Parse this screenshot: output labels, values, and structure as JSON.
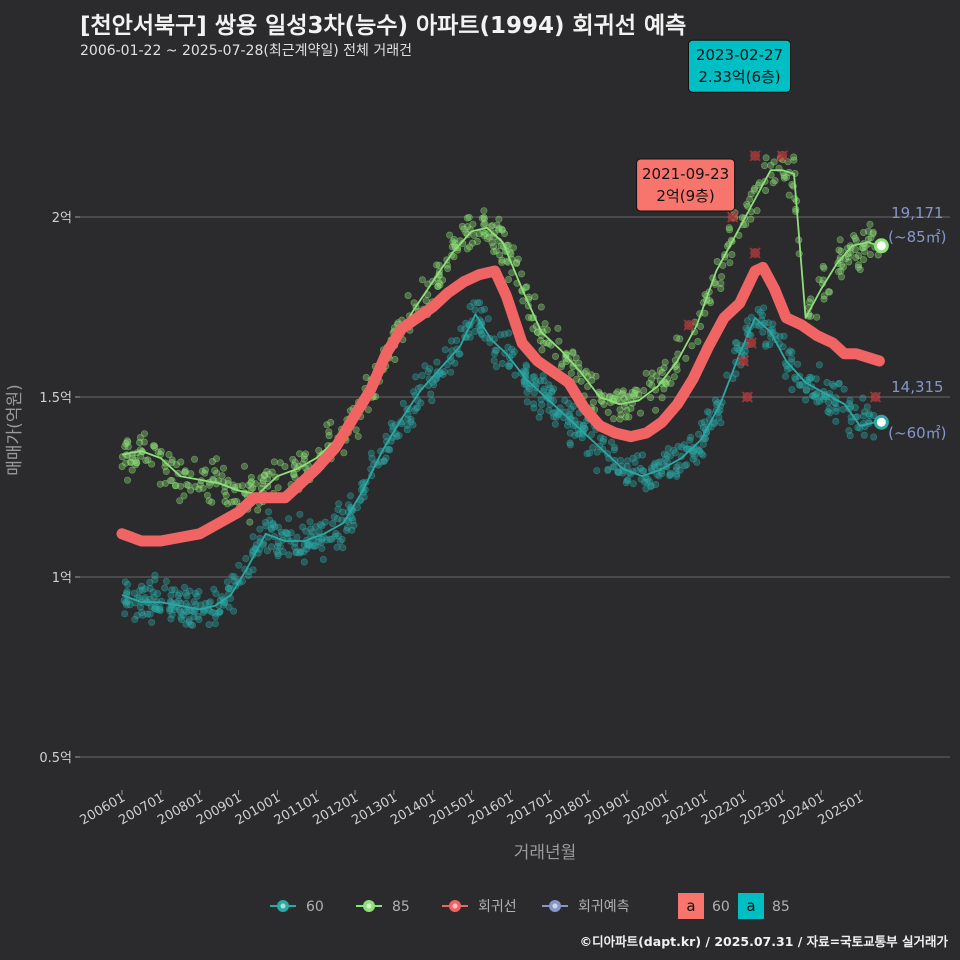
{
  "title": "[천안서북구] 쌍용 일성3차(능수) 아파트(1994) 회귀선 예측",
  "subtitle": "2006-01-22 ~ 2025-07-28(최근계약일) 전체 거래건",
  "caption": "©디아파트(dapt.kr) / 2025.07.31 / 자료=국토교통부 실거래가",
  "colors": {
    "background": "#2b2b2d",
    "grid": "#6a6a6a",
    "s60": "#2ba9a5",
    "s85": "#8fe07a",
    "reg": "#f06464",
    "pred": "#8696c8",
    "label60_bg": "#f8756d",
    "label85_bg": "#00bfc4"
  },
  "chart_data": {
    "type": "scatter",
    "xlabel": "거래년월",
    "ylabel": "매매가(억원)",
    "x_ticks": [
      "200601",
      "200701",
      "200801",
      "200901",
      "201001",
      "201101",
      "201201",
      "201301",
      "201401",
      "201501",
      "201601",
      "201701",
      "201801",
      "201901",
      "202001",
      "202101",
      "202201",
      "202301",
      "202401",
      "202501"
    ],
    "y_ticks": [
      {
        "value": 0.5,
        "label": "0.5억"
      },
      {
        "value": 1.0,
        "label": "1억"
      },
      {
        "value": 1.5,
        "label": "1.5억"
      },
      {
        "value": 2.0,
        "label": "2억"
      }
    ],
    "ylim": [
      0.4,
      2.45
    ],
    "xlim": [
      2005.6,
      2026.0
    ],
    "series": [
      {
        "name": "60",
        "key": "s60",
        "line": [
          [
            2006.0,
            0.95
          ],
          [
            2006.5,
            0.93
          ],
          [
            2007.0,
            0.93
          ],
          [
            2007.5,
            0.92
          ],
          [
            2008.0,
            0.91
          ],
          [
            2008.4,
            0.92
          ],
          [
            2008.8,
            0.95
          ],
          [
            2009.2,
            1.02
          ],
          [
            2009.7,
            1.12
          ],
          [
            2010.2,
            1.1
          ],
          [
            2010.7,
            1.1
          ],
          [
            2011.2,
            1.12
          ],
          [
            2011.7,
            1.15
          ],
          [
            2012.2,
            1.24
          ],
          [
            2012.7,
            1.35
          ],
          [
            2013.2,
            1.44
          ],
          [
            2013.7,
            1.52
          ],
          [
            2014.2,
            1.58
          ],
          [
            2014.7,
            1.64
          ],
          [
            2015.1,
            1.73
          ],
          [
            2015.5,
            1.66
          ],
          [
            2015.9,
            1.62
          ],
          [
            2016.4,
            1.55
          ],
          [
            2016.9,
            1.5
          ],
          [
            2017.4,
            1.45
          ],
          [
            2017.9,
            1.4
          ],
          [
            2018.4,
            1.35
          ],
          [
            2018.9,
            1.3
          ],
          [
            2019.4,
            1.28
          ],
          [
            2019.9,
            1.3
          ],
          [
            2020.4,
            1.33
          ],
          [
            2020.9,
            1.38
          ],
          [
            2021.4,
            1.48
          ],
          [
            2021.9,
            1.62
          ],
          [
            2022.3,
            1.72
          ],
          [
            2022.7,
            1.68
          ],
          [
            2023.1,
            1.6
          ],
          [
            2023.6,
            1.54
          ],
          [
            2024.1,
            1.51
          ],
          [
            2024.6,
            1.48
          ],
          [
            2025.0,
            1.42
          ],
          [
            2025.4,
            1.43
          ]
        ]
      },
      {
        "name": "85",
        "key": "s85",
        "line": [
          [
            2006.0,
            1.34
          ],
          [
            2006.5,
            1.35
          ],
          [
            2007.0,
            1.33
          ],
          [
            2007.5,
            1.28
          ],
          [
            2008.0,
            1.27
          ],
          [
            2008.5,
            1.26
          ],
          [
            2009.0,
            1.24
          ],
          [
            2009.5,
            1.23
          ],
          [
            2010.0,
            1.28
          ],
          [
            2010.5,
            1.3
          ],
          [
            2011.0,
            1.33
          ],
          [
            2011.5,
            1.38
          ],
          [
            2012.0,
            1.45
          ],
          [
            2012.5,
            1.55
          ],
          [
            2013.0,
            1.65
          ],
          [
            2013.5,
            1.74
          ],
          [
            2014.0,
            1.82
          ],
          [
            2014.5,
            1.9
          ],
          [
            2015.0,
            1.96
          ],
          [
            2015.4,
            1.97
          ],
          [
            2015.8,
            1.93
          ],
          [
            2016.3,
            1.8
          ],
          [
            2016.8,
            1.68
          ],
          [
            2017.3,
            1.63
          ],
          [
            2017.8,
            1.57
          ],
          [
            2018.3,
            1.5
          ],
          [
            2018.8,
            1.48
          ],
          [
            2019.3,
            1.49
          ],
          [
            2019.8,
            1.53
          ],
          [
            2020.3,
            1.6
          ],
          [
            2020.8,
            1.7
          ],
          [
            2021.3,
            1.85
          ],
          [
            2021.8,
            1.95
          ],
          [
            2022.3,
            2.05
          ],
          [
            2022.7,
            2.13
          ],
          [
            2023.0,
            2.13
          ],
          [
            2023.3,
            2.12
          ],
          [
            2023.6,
            1.72
          ],
          [
            2024.0,
            1.8
          ],
          [
            2024.4,
            1.87
          ],
          [
            2024.8,
            1.92
          ],
          [
            2025.2,
            1.93
          ],
          [
            2025.5,
            1.92
          ]
        ]
      }
    ],
    "regression": {
      "name": "회귀선",
      "points": [
        [
          2006.0,
          1.12
        ],
        [
          2006.5,
          1.1
        ],
        [
          2007.0,
          1.1
        ],
        [
          2007.5,
          1.11
        ],
        [
          2008.0,
          1.12
        ],
        [
          2008.5,
          1.15
        ],
        [
          2009.0,
          1.18
        ],
        [
          2009.4,
          1.22
        ],
        [
          2009.8,
          1.22
        ],
        [
          2010.2,
          1.22
        ],
        [
          2010.6,
          1.26
        ],
        [
          2011.0,
          1.3
        ],
        [
          2011.5,
          1.36
        ],
        [
          2012.0,
          1.45
        ],
        [
          2012.4,
          1.52
        ],
        [
          2012.8,
          1.62
        ],
        [
          2013.2,
          1.69
        ],
        [
          2013.6,
          1.72
        ],
        [
          2014.0,
          1.75
        ],
        [
          2014.4,
          1.79
        ],
        [
          2014.8,
          1.82
        ],
        [
          2015.2,
          1.84
        ],
        [
          2015.6,
          1.85
        ],
        [
          2015.9,
          1.78
        ],
        [
          2016.3,
          1.65
        ],
        [
          2016.7,
          1.6
        ],
        [
          2017.1,
          1.57
        ],
        [
          2017.5,
          1.54
        ],
        [
          2017.9,
          1.47
        ],
        [
          2018.3,
          1.42
        ],
        [
          2018.7,
          1.4
        ],
        [
          2019.1,
          1.39
        ],
        [
          2019.5,
          1.4
        ],
        [
          2019.9,
          1.43
        ],
        [
          2020.3,
          1.48
        ],
        [
          2020.7,
          1.55
        ],
        [
          2021.1,
          1.64
        ],
        [
          2021.5,
          1.72
        ],
        [
          2021.9,
          1.76
        ],
        [
          2022.3,
          1.85
        ],
        [
          2022.5,
          1.86
        ],
        [
          2022.8,
          1.8
        ],
        [
          2023.1,
          1.72
        ],
        [
          2023.5,
          1.7
        ],
        [
          2023.9,
          1.67
        ],
        [
          2024.3,
          1.65
        ],
        [
          2024.6,
          1.62
        ],
        [
          2024.9,
          1.62
        ],
        [
          2025.2,
          1.61
        ],
        [
          2025.5,
          1.6
        ]
      ]
    },
    "prediction": {
      "name": "회귀예측"
    },
    "end_points": [
      {
        "series": "85",
        "x": 2025.55,
        "y": 1.92,
        "count": "19,171",
        "area": "(~85㎡)"
      },
      {
        "series": "60",
        "x": 2025.55,
        "y": 1.43,
        "count": "14,315",
        "area": "(~60㎡)"
      }
    ],
    "highlights": [
      {
        "series": "60",
        "x": 2021.72,
        "y": 2.0,
        "date": "2021-09-23",
        "price": "2억(9층)"
      },
      {
        "series": "85",
        "x": 2023.16,
        "y": 2.33,
        "date": "2023-02-27",
        "price": "2.33억(6층)"
      }
    ],
    "outliers": [
      [
        2020.6,
        1.7
      ],
      [
        2021.72,
        2.0
      ],
      [
        2022.3,
        2.17
      ],
      [
        2022.3,
        1.9
      ],
      [
        2023.0,
        2.17
      ],
      [
        2022.0,
        1.6
      ],
      [
        2022.1,
        1.5
      ],
      [
        2022.2,
        1.65
      ],
      [
        2025.4,
        1.5
      ]
    ],
    "legend": [
      {
        "label": "60",
        "key": "s60",
        "kind": "point-line"
      },
      {
        "label": "85",
        "key": "s85",
        "kind": "point-line"
      },
      {
        "label": "회귀선",
        "key": "reg",
        "kind": "point-line"
      },
      {
        "label": "회귀예측",
        "key": "pred",
        "kind": "point-line"
      },
      {
        "label": "60",
        "key": "label60_bg",
        "kind": "text-box",
        "glyph": "a"
      },
      {
        "label": "85",
        "key": "label85_bg",
        "kind": "text-box",
        "glyph": "a"
      }
    ],
    "legend_position": "bottom",
    "grid": true
  }
}
